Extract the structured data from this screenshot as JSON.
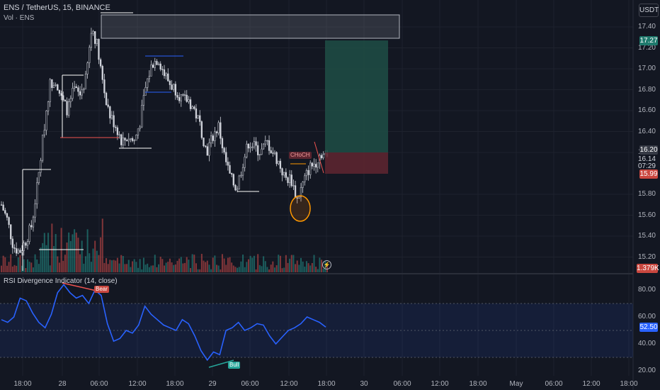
{
  "header": {
    "symbol_line": "ENS / TetherUS, 15, BINANCE",
    "volume_label": "Vol · ENS"
  },
  "currency_button": "USDT",
  "price_axis": {
    "ticks": [
      "17.40",
      "17.20",
      "17.00",
      "16.80",
      "16.60",
      "16.40",
      "16.20",
      "15.80",
      "15.60",
      "15.40",
      "15.20"
    ],
    "target_tag": "17.27",
    "current_tag": "16.20",
    "last_price": "16.14",
    "countdown": "07:29",
    "stop_tag": "15.99",
    "volume_tag": "1.379K"
  },
  "rsi_panel": {
    "title": "RSI Divergence Indicator (14, close)",
    "value_tag": "52.50",
    "ticks": [
      "80.00",
      "60.00",
      "40.00",
      "20.00"
    ],
    "bear_label": "Bear",
    "bull_label": "Bull"
  },
  "annotations": {
    "choch_label": "CHoCH"
  },
  "time_axis": [
    "18:00",
    "28",
    "06:00",
    "12:00",
    "18:00",
    "29",
    "06:00",
    "12:00",
    "18:00",
    "30",
    "06:00",
    "12:00",
    "18:00",
    "May",
    "06:00",
    "12:00",
    "18:00"
  ],
  "colors": {
    "background": "#131722",
    "up": "#26a69a",
    "down": "#ef5350",
    "candle": "#d1d4dc",
    "rsi_line": "#2962ff",
    "target_zone": "#1f4e45",
    "stop_zone": "#5c2530"
  },
  "chart_data": [
    {
      "type": "candlestick",
      "title": "ENS / TetherUS, 15, BINANCE",
      "ylim": [
        15.1,
        17.55
      ],
      "close_path_approx": [
        15.7,
        15.55,
        15.3,
        15.25,
        15.35,
        15.5,
        15.9,
        16.4,
        16.85,
        16.9,
        16.7,
        16.6,
        16.8,
        16.75,
        16.9,
        17.4,
        17.2,
        16.8,
        16.55,
        16.45,
        16.3,
        16.35,
        16.3,
        16.5,
        16.85,
        17.05,
        17.1,
        16.95,
        16.85,
        16.8,
        16.7,
        16.7,
        16.6,
        16.45,
        16.2,
        16.35,
        16.45,
        16.15,
        15.95,
        15.85,
        16.1,
        16.3,
        16.25,
        16.2,
        16.3,
        16.2,
        16.1,
        15.95,
        15.95,
        15.75,
        15.9,
        16.05,
        16.1,
        16.2,
        16.14
      ],
      "target_price": 17.27,
      "current_price": 16.2,
      "last_price": 16.14,
      "stop_price": 15.99
    },
    {
      "type": "line",
      "title": "RSI Divergence Indicator (14, close)",
      "ylim": [
        20,
        85
      ],
      "values": [
        58,
        56,
        60,
        74,
        72,
        63,
        56,
        52,
        62,
        78,
        84,
        78,
        74,
        76,
        70,
        80,
        76,
        55,
        42,
        44,
        50,
        48,
        54,
        68,
        62,
        58,
        54,
        52,
        50,
        58,
        55,
        46,
        35,
        28,
        34,
        32,
        50,
        52,
        56,
        50,
        52,
        55,
        54,
        46,
        40,
        45,
        50,
        52,
        55,
        60,
        58,
        56,
        52.5
      ],
      "reference_levels": [
        70,
        30
      ],
      "current_value": 52.5
    }
  ]
}
